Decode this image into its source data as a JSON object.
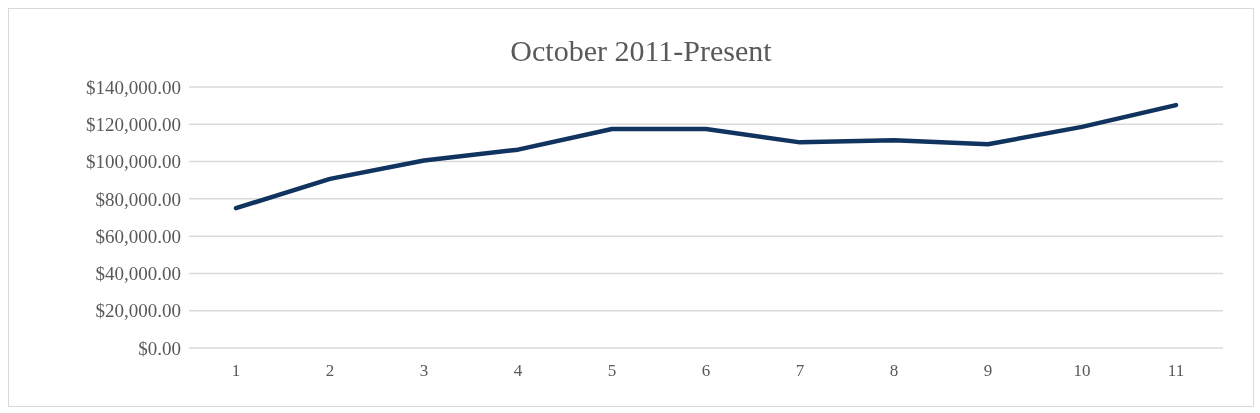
{
  "chart_data": {
    "type": "line",
    "title": "October 2011-Present",
    "categories": [
      "1",
      "2",
      "3",
      "4",
      "5",
      "6",
      "7",
      "8",
      "9",
      "10",
      "11"
    ],
    "series": [
      {
        "color": "#10335f",
        "values": [
          75000,
          90700,
          100600,
          106400,
          117500,
          117500,
          110300,
          111500,
          109300,
          118600,
          130300
        ]
      }
    ],
    "ylim": [
      0,
      140000
    ],
    "yticks": [
      {
        "value": 0,
        "label": "$0.00"
      },
      {
        "value": 20000,
        "label": "$20,000.00"
      },
      {
        "value": 40000,
        "label": "$40,000.00"
      },
      {
        "value": 60000,
        "label": "$60,000.00"
      },
      {
        "value": 80000,
        "label": "$80,000.00"
      },
      {
        "value": 100000,
        "label": "$100,000.00"
      },
      {
        "value": 120000,
        "label": "$120,000.00"
      },
      {
        "value": 140000,
        "label": "$140,000.00"
      }
    ],
    "grid": "y",
    "marker": "none",
    "line_style": "solid"
  }
}
